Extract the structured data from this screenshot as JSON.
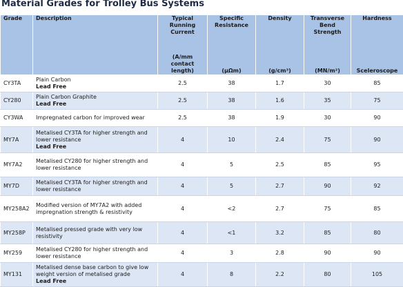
{
  "header": {
    "title": "Material Grades for Trolley Bus Systems"
  },
  "table": {
    "columns": [
      {
        "name": "Grade"
      },
      {
        "name": "Description"
      },
      {
        "name": "Typical Running Current",
        "unit": "(A/mm contact length)"
      },
      {
        "name": "Specific Resistance",
        "unit": "(μΩm)"
      },
      {
        "name": "Density",
        "unit": "(g/cm³)"
      },
      {
        "name": "Transverse Bend Strength",
        "unit": "(MN/m²)"
      },
      {
        "name": "Hardness",
        "unit": "Sceleroscope"
      }
    ],
    "rows": [
      {
        "grade": "CY3TA",
        "description": "Plain Carbon",
        "note": "Lead Free",
        "current": 2.5,
        "resistance": 38,
        "density": 1.7,
        "strength": 30,
        "hardness": 85
      },
      {
        "grade": "CY280",
        "description": "Plain Carbon Graphite",
        "note": "Lead Free",
        "current": 2.5,
        "resistance": 38,
        "density": 1.6,
        "strength": 35,
        "hardness": 75
      },
      {
        "grade": "CY3WA",
        "description": "Impregnated carbon for improved wear",
        "current": 2.5,
        "resistance": 38,
        "density": 1.9,
        "strength": 30,
        "hardness": 90
      },
      {
        "grade": "MY7A",
        "description": "Metalised CY3TA for higher strength and lower resistance",
        "note": "Lead Free",
        "current": 4,
        "resistance": 10,
        "density": 2.4,
        "strength": 75,
        "hardness": 90
      },
      {
        "grade": "MY7A2",
        "description": "Metalised CY280 for higher strength and lower resistance",
        "current": 4,
        "resistance": 5,
        "density": 2.5,
        "strength": 85,
        "hardness": 95
      },
      {
        "grade": "MY7D",
        "description": "Metalised CY3TA for higher strength and lower resistance",
        "current": 4,
        "resistance": 5,
        "density": 2.7,
        "strength": 90,
        "hardness": 92
      },
      {
        "grade": "MY258A2",
        "description": "Modified version of MY7A2 with added impregnation strength & resistivity",
        "current": 4,
        "resistance": "<2",
        "density": 2.7,
        "strength": 75,
        "hardness": 85
      },
      {
        "grade": "MY258P",
        "description": "Metalised pressed grade with very low resistivity",
        "current": 4,
        "resistance": "<1",
        "density": 3.2,
        "strength": 85,
        "hardness": 80
      },
      {
        "grade": "MY259",
        "description": "Metalised CY280 for higher strength and lower resistance",
        "current": 4,
        "resistance": 3,
        "density": 2.8,
        "strength": 90,
        "hardness": 90
      },
      {
        "grade": "MY131",
        "description": "Metalised dense base carbon to give low weight version of metalised grade",
        "note": "Lead Free",
        "current": 4,
        "resistance": 8,
        "density": 2.2,
        "strength": 80,
        "hardness": 105
      }
    ]
  }
}
